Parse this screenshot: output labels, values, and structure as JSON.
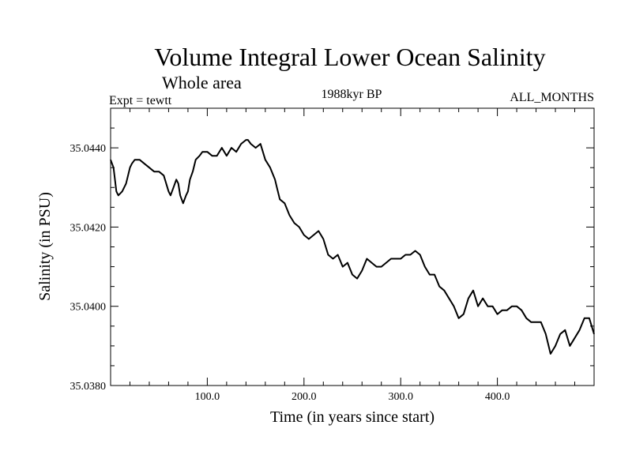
{
  "chart_data": {
    "type": "line",
    "title": "Volume Integral Lower Ocean Salinity",
    "subtitle": "Whole area",
    "experiment": "Expt = tewtt",
    "period": "1988kyr BP",
    "months": "ALL_MONTHS",
    "xlabel": "Time (in years since start)",
    "ylabel": "Salinity (in PSU)",
    "xlim": [
      0,
      500
    ],
    "ylim": [
      35.038,
      35.045
    ],
    "x_ticks": [
      {
        "value": 100,
        "label": "100.0"
      },
      {
        "value": 200,
        "label": "200.0"
      },
      {
        "value": 300,
        "label": "300.0"
      },
      {
        "value": 400,
        "label": "400.0"
      }
    ],
    "y_ticks": [
      {
        "value": 35.038,
        "label": "35.0380"
      },
      {
        "value": 35.04,
        "label": "35.0400"
      },
      {
        "value": 35.042,
        "label": "35.0420"
      },
      {
        "value": 35.044,
        "label": "35.0440"
      }
    ],
    "grid": false,
    "series": [
      {
        "name": "Salinity",
        "x": [
          0,
          3,
          6,
          8,
          12,
          16,
          20,
          22,
          25,
          30,
          35,
          40,
          45,
          50,
          55,
          60,
          62,
          65,
          68,
          70,
          72,
          75,
          78,
          80,
          82,
          85,
          88,
          92,
          95,
          100,
          105,
          110,
          115,
          120,
          125,
          130,
          135,
          140,
          142,
          145,
          150,
          155,
          160,
          165,
          170,
          172,
          175,
          180,
          185,
          190,
          195,
          200,
          205,
          210,
          215,
          220,
          225,
          230,
          235,
          240,
          245,
          250,
          255,
          260,
          265,
          270,
          275,
          280,
          285,
          290,
          295,
          300,
          305,
          310,
          315,
          320,
          325,
          330,
          335,
          340,
          345,
          350,
          355,
          360,
          365,
          370,
          375,
          380,
          385,
          390,
          395,
          400,
          405,
          410,
          415,
          420,
          425,
          430,
          435,
          440,
          445,
          450,
          455,
          460,
          465,
          470,
          475,
          480,
          485,
          490,
          495,
          500
        ],
        "y": [
          35.0437,
          35.0435,
          35.0429,
          35.0428,
          35.0429,
          35.0431,
          35.0435,
          35.0436,
          35.0437,
          35.0437,
          35.0436,
          35.0435,
          35.0434,
          35.0434,
          35.0433,
          35.0429,
          35.0428,
          35.043,
          35.0432,
          35.0431,
          35.0428,
          35.0426,
          35.0428,
          35.0429,
          35.0432,
          35.0434,
          35.0437,
          35.0438,
          35.0439,
          35.0439,
          35.0438,
          35.0438,
          35.044,
          35.0438,
          35.044,
          35.0439,
          35.0441,
          35.0442,
          35.0442,
          35.0441,
          35.044,
          35.0441,
          35.0437,
          35.0435,
          35.0432,
          35.043,
          35.0427,
          35.0426,
          35.0423,
          35.0421,
          35.042,
          35.0418,
          35.0417,
          35.0418,
          35.0419,
          35.0417,
          35.0413,
          35.0412,
          35.0413,
          35.041,
          35.0411,
          35.0408,
          35.0407,
          35.0409,
          35.0412,
          35.0411,
          35.041,
          35.041,
          35.0411,
          35.0412,
          35.0412,
          35.0412,
          35.0413,
          35.0413,
          35.0414,
          35.0413,
          35.041,
          35.0408,
          35.0408,
          35.0405,
          35.0404,
          35.0402,
          35.04,
          35.0397,
          35.0398,
          35.0402,
          35.0404,
          35.04,
          35.0402,
          35.04,
          35.04,
          35.0398,
          35.0399,
          35.0399,
          35.04,
          35.04,
          35.0399,
          35.0397,
          35.0396,
          35.0396,
          35.0396,
          35.0393,
          35.0388,
          35.039,
          35.0393,
          35.0394,
          35.039,
          35.0392,
          35.0394,
          35.0397,
          35.0397,
          35.0393
        ]
      }
    ]
  }
}
